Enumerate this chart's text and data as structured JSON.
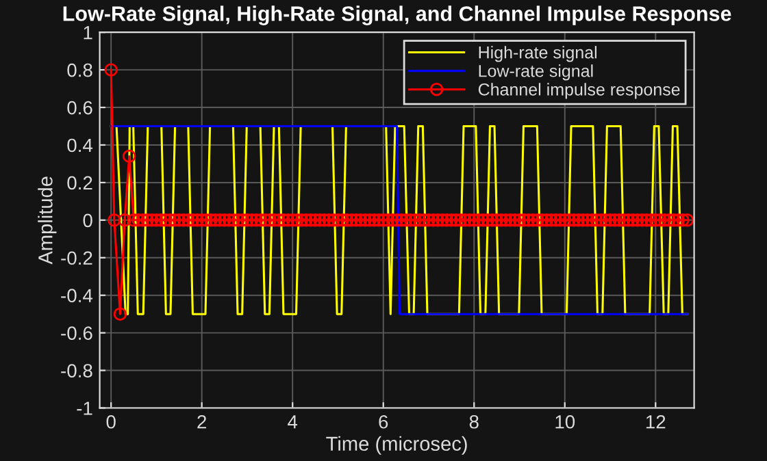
{
  "chart_data": {
    "type": "line",
    "title": "Low-Rate Signal, High-Rate Signal, and Channel Impulse Response",
    "xlabel": "Time (microsec)",
    "ylabel": "Amplitude",
    "series": [
      {
        "name": "High-rate signal",
        "color": "#ffff00",
        "marker": "none",
        "x": [
          0,
          0.12,
          0.32,
          0.37,
          0.41,
          0.49,
          0.59,
          0.71,
          0.81,
          1.11,
          1.21,
          1.31,
          1.41,
          1.7,
          1.8,
          2.08,
          2.18,
          2.69,
          2.79,
          2.89,
          2.99,
          3.29,
          3.39,
          3.49,
          3.59,
          3.7,
          3.8,
          4.08,
          4.18,
          4.88,
          4.98,
          5.08,
          5.18,
          6.06,
          6.16,
          6.26,
          6.46,
          6.57,
          6.67,
          6.77,
          6.87,
          6.97,
          7.67,
          7.77,
          8.04,
          8.14,
          8.25,
          8.35,
          8.45,
          8.55,
          8.99,
          9.09,
          9.39,
          9.49,
          10.04,
          10.14,
          10.62,
          10.72,
          10.83,
          10.93,
          11.23,
          11.33,
          11.87,
          11.97,
          12.07,
          12.18,
          12.28,
          12.38,
          12.48,
          12.59,
          12.7
        ],
        "values": [
          0.5,
          0.5,
          -0.5,
          -0.5,
          0.5,
          0.5,
          -0.5,
          -0.5,
          0.5,
          0.5,
          -0.5,
          -0.5,
          0.5,
          0.5,
          -0.5,
          -0.5,
          0.5,
          0.5,
          -0.5,
          -0.5,
          0.5,
          0.5,
          -0.5,
          -0.5,
          0.5,
          0.5,
          -0.5,
          -0.5,
          0.5,
          0.5,
          -0.5,
          -0.5,
          0.5,
          0.5,
          -0.5,
          0.5,
          0.5,
          -0.5,
          -0.5,
          0.5,
          0.5,
          -0.5,
          -0.5,
          0.5,
          0.5,
          -0.5,
          -0.5,
          0.5,
          0.5,
          -0.5,
          -0.5,
          0.5,
          0.5,
          -0.5,
          -0.5,
          0.5,
          0.5,
          -0.5,
          -0.5,
          0.5,
          0.5,
          -0.5,
          -0.5,
          0.5,
          0.5,
          -0.5,
          -0.5,
          0.5,
          0.5,
          -0.5,
          -0.5
        ]
      },
      {
        "name": "Low-rate signal",
        "color": "#0000ff",
        "marker": "none",
        "x": [
          0,
          6.3,
          6.36,
          12.7
        ],
        "values": [
          0.5,
          0.5,
          -0.5,
          -0.5
        ]
      },
      {
        "name": "Channel impulse response",
        "color": "#ff0000",
        "marker": "circle",
        "x": [
          0,
          0.07,
          0.2,
          0.3,
          0.4,
          0.5,
          0.6,
          0.7,
          0.8,
          0.9,
          1.0,
          1.1,
          1.2,
          1.3,
          1.4,
          1.5,
          1.6,
          1.7,
          1.8,
          1.9,
          2.0,
          2.1,
          2.2,
          2.3,
          2.4,
          2.5,
          2.6,
          2.7,
          2.8,
          2.9,
          3.0,
          3.1,
          3.2,
          3.3,
          3.4,
          3.5,
          3.6,
          3.7,
          3.8,
          3.9,
          4.0,
          4.1,
          4.2,
          4.3,
          4.4,
          4.5,
          4.6,
          4.7,
          4.8,
          4.9,
          5.0,
          5.1,
          5.2,
          5.3,
          5.4,
          5.5,
          5.6,
          5.7,
          5.8,
          5.9,
          6.0,
          6.1,
          6.2,
          6.3,
          6.4,
          6.5,
          6.6,
          6.7,
          6.8,
          6.9,
          7.0,
          7.1,
          7.2,
          7.3,
          7.4,
          7.5,
          7.6,
          7.7,
          7.8,
          7.9,
          8.0,
          8.1,
          8.2,
          8.3,
          8.4,
          8.5,
          8.6,
          8.7,
          8.8,
          8.9,
          9.0,
          9.1,
          9.2,
          9.3,
          9.4,
          9.5,
          9.6,
          9.7,
          9.8,
          9.9,
          10.0,
          10.1,
          10.2,
          10.3,
          10.4,
          10.5,
          10.6,
          10.7,
          10.8,
          10.9,
          11.0,
          11.1,
          11.2,
          11.3,
          11.4,
          11.5,
          11.6,
          11.7,
          11.8,
          11.9,
          12.0,
          12.1,
          12.2,
          12.3,
          12.4,
          12.5,
          12.6,
          12.7
        ],
        "values": [
          0.8,
          0,
          -0.5,
          0,
          0.34,
          0,
          0,
          0,
          0,
          0,
          0,
          0,
          0,
          0,
          0,
          0,
          0,
          0,
          0,
          0,
          0,
          0,
          0,
          0,
          0,
          0,
          0,
          0,
          0,
          0,
          0,
          0,
          0,
          0,
          0,
          0,
          0,
          0,
          0,
          0,
          0,
          0,
          0,
          0,
          0,
          0,
          0,
          0,
          0,
          0,
          0,
          0,
          0,
          0,
          0,
          0,
          0,
          0,
          0,
          0,
          0,
          0,
          0,
          0,
          0,
          0,
          0,
          0,
          0,
          0,
          0,
          0,
          0,
          0,
          0,
          0,
          0,
          0,
          0,
          0,
          0,
          0,
          0,
          0,
          0,
          0,
          0,
          0,
          0,
          0,
          0,
          0,
          0,
          0,
          0,
          0,
          0,
          0,
          0,
          0,
          0,
          0,
          0,
          0,
          0,
          0,
          0,
          0,
          0,
          0,
          0,
          0,
          0,
          0,
          0,
          0,
          0,
          0,
          0,
          0,
          0,
          0,
          0,
          0,
          0,
          0,
          0,
          0
        ]
      }
    ],
    "xlim": [
      -0.25,
      12.85
    ],
    "xticks": [
      0,
      2,
      4,
      6,
      8,
      10,
      12
    ],
    "ylim": [
      -1,
      1
    ],
    "yticks": [
      -1,
      -0.8,
      -0.6,
      -0.4,
      -0.2,
      0,
      0.2,
      0.4,
      0.6,
      0.8,
      1
    ],
    "grid": true,
    "legend": "top right",
    "line_style": "solid"
  }
}
